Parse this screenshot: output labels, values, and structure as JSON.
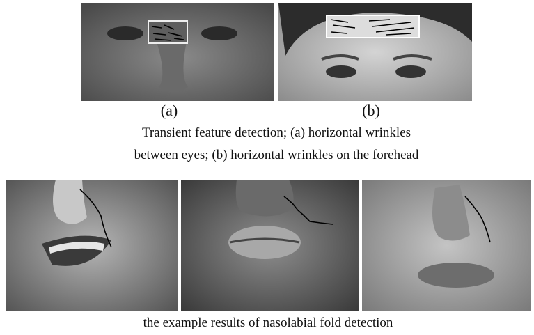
{
  "top_figure": {
    "panels": [
      {
        "label": "(a)"
      },
      {
        "label": "(b)"
      }
    ],
    "caption": [
      "Transient feature detection; (a) horizontal wrinkles",
      "between eyes; (b) horizontal wrinkles on the forehead"
    ]
  },
  "bottom_figure": {
    "caption": "the example results of nasolabial fold detection"
  }
}
